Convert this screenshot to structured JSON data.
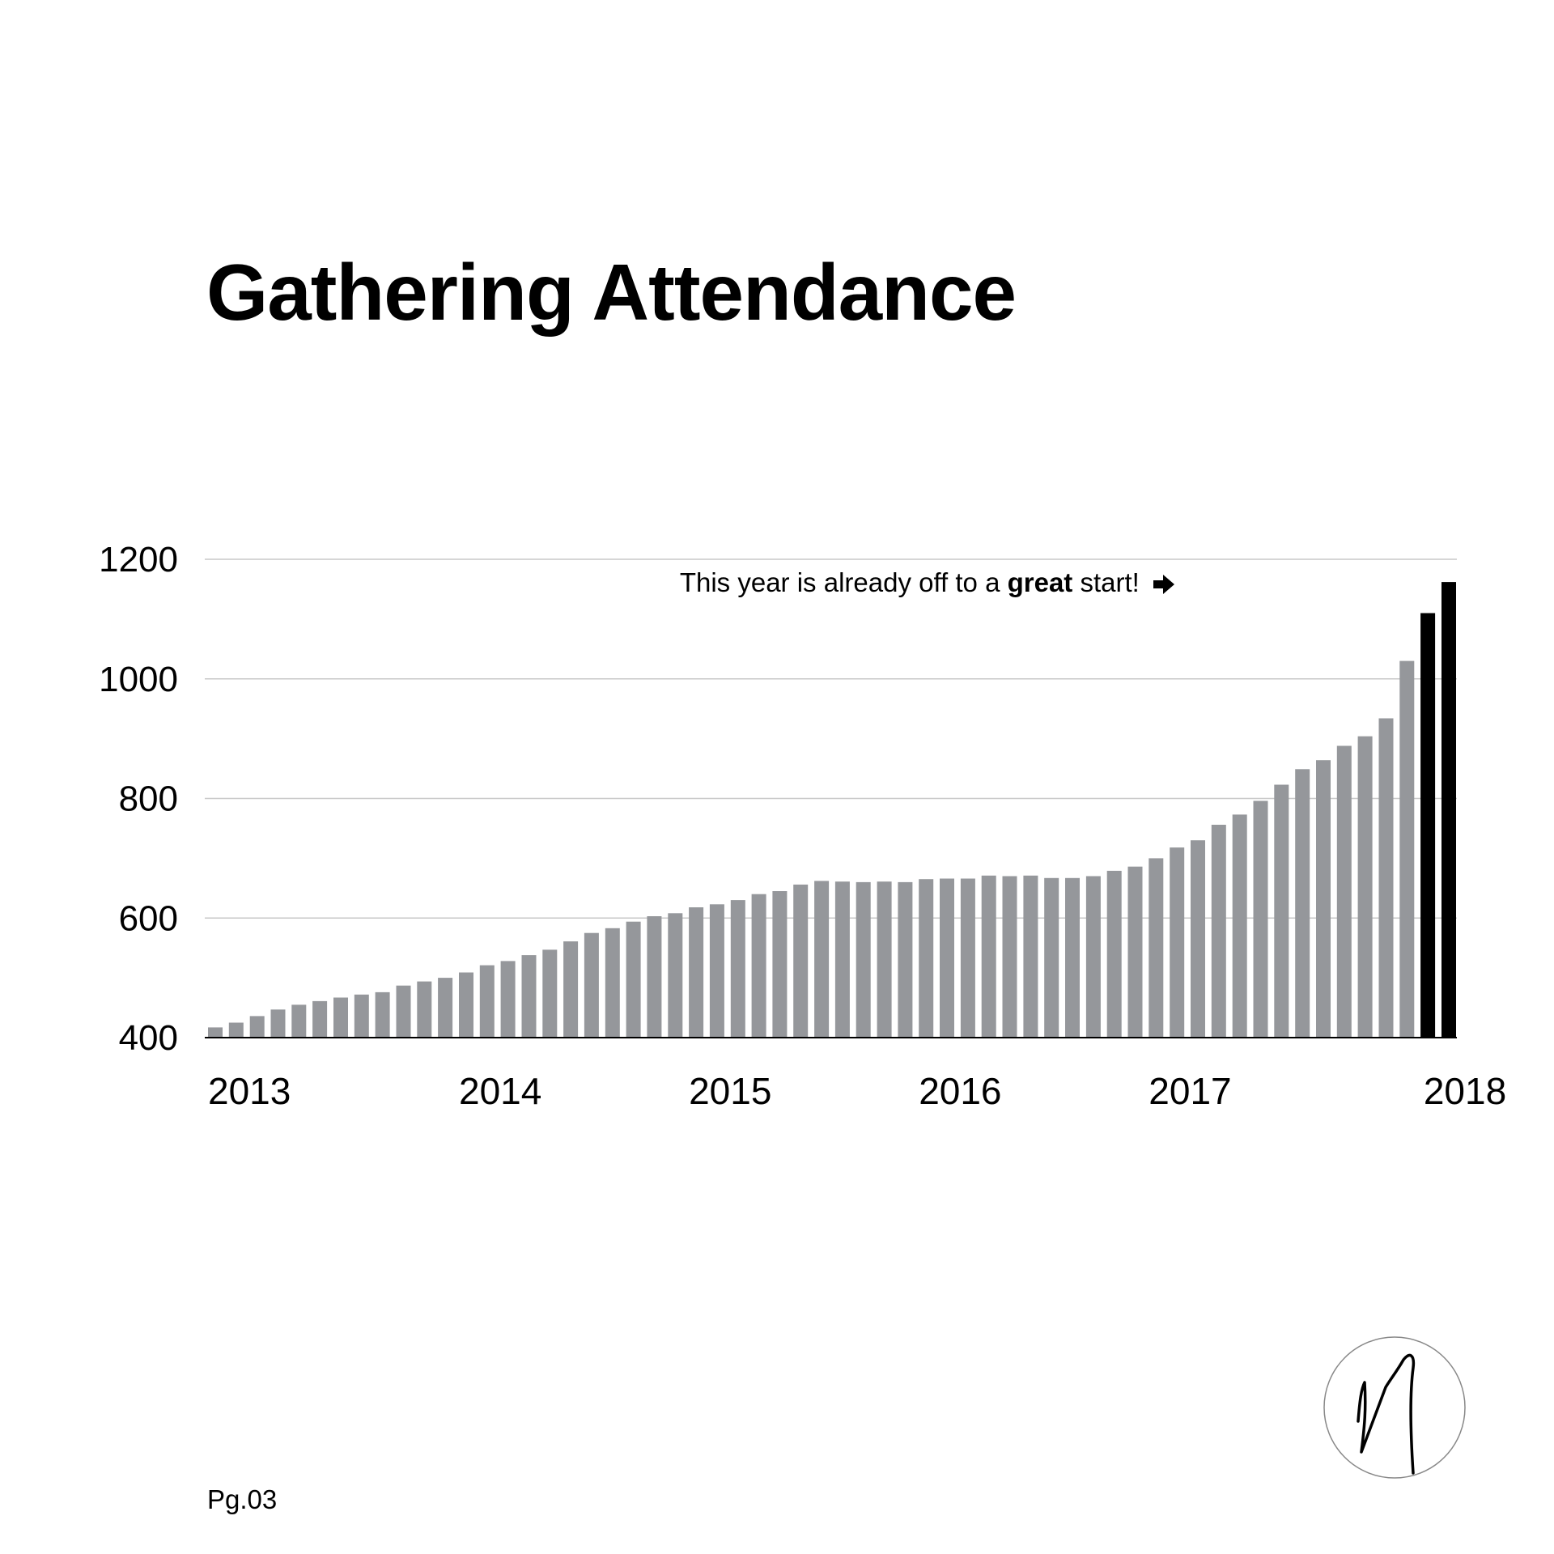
{
  "page": {
    "title": "Gathering Attendance",
    "page_number": "Pg.03"
  },
  "annotation": {
    "prefix": "This year is already off to a ",
    "emphasis": "great",
    "suffix": " start!",
    "icon": "arrow-right-icon"
  },
  "logo": {
    "icon": "signature-monogram-icon"
  },
  "colors": {
    "bar": "#95979b",
    "highlight": "#000000",
    "grid": "#c8c8c8",
    "axis": "#000000"
  },
  "chart_data": {
    "type": "bar",
    "title": "Gathering Attendance",
    "xlabel": "",
    "ylabel": "",
    "ylim": [
      400,
      1200
    ],
    "yticks": [
      400,
      600,
      800,
      1000,
      1200
    ],
    "grid": true,
    "year_ticks": [
      {
        "label": "2013",
        "bar_index": 0
      },
      {
        "label": "2014",
        "bar_index": 12
      },
      {
        "label": "2015",
        "bar_index": 23
      },
      {
        "label": "2016",
        "bar_index": 34
      },
      {
        "label": "2017",
        "bar_index": 45
      },
      {
        "label": "2018",
        "bar_index": 60
      }
    ],
    "values": [
      417,
      425,
      436,
      447,
      455,
      461,
      467,
      472,
      476,
      487,
      494,
      500,
      509,
      521,
      528,
      538,
      547,
      561,
      575,
      583,
      594,
      603,
      608,
      618,
      623,
      630,
      640,
      645,
      656,
      662,
      661,
      660,
      661,
      660,
      665,
      666,
      666,
      671,
      670,
      671,
      667,
      667,
      670,
      679,
      686,
      700,
      718,
      730,
      756,
      773,
      796,
      823,
      849,
      864,
      888,
      904,
      934,
      1030,
      1110,
      1162
    ],
    "highlight_from_index": 58
  }
}
